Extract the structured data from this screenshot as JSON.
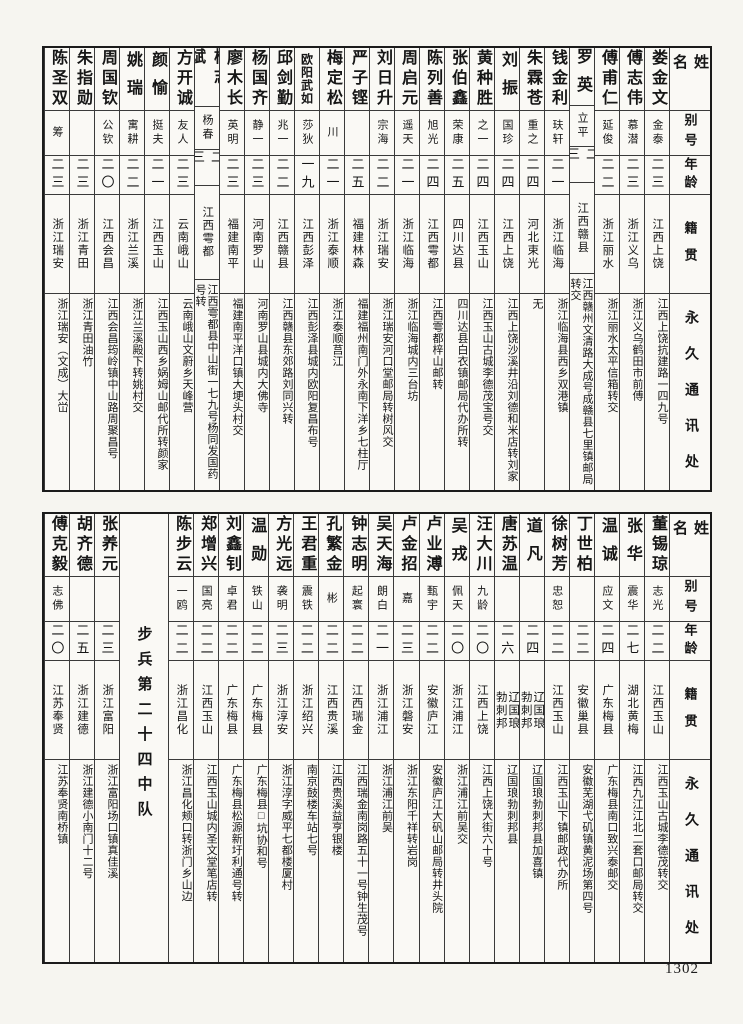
{
  "page": {
    "number": "1302"
  },
  "headers": {
    "name": "姓名",
    "alias": "别号",
    "age": "年龄",
    "native_place": "籍贯",
    "address": "永久通讯处"
  },
  "tables": [
    {
      "entries": [
        {
          "name": "娄金文",
          "alias": "金泰",
          "age": "二三",
          "native_place": "江西上饶",
          "address": "江西上饶抗建路一四九号"
        },
        {
          "name": "傅志伟",
          "alias": "慕潜",
          "age": "二三",
          "native_place": "浙江义乌",
          "address": "浙江义乌鹤田市前傅"
        },
        {
          "name": "傅甫仁",
          "alias": "延俊",
          "age": "二二",
          "native_place": "浙江丽水",
          "address": "浙江丽水太平信箱转交"
        },
        {
          "name": "罗英",
          "alias": "立平",
          "age": "二三",
          "native_place": "江西赣县",
          "address": "江西赣州文清路大成号成赣县七里镇邮局转交\n罗宅均可"
        },
        {
          "name": "钱金利",
          "alias": "玞轩",
          "age": "二一",
          "native_place": "浙江临海",
          "address": "浙江临海县西乡双港镇"
        },
        {
          "name": "朱霖苍",
          "alias": "重之",
          "age": "二四",
          "native_place": "河北束光",
          "address": "无"
        },
        {
          "name": "刘振",
          "alias": "国珍",
          "age": "二四",
          "native_place": "江西上饶",
          "address": "江西上饶沙溪井沿刘德和米店转刘家"
        },
        {
          "name": "黄种胜",
          "alias": "之一",
          "age": "二四",
          "native_place": "江西玉山",
          "address": "江西玉山古城李德茂宝号交"
        },
        {
          "name": "张伯鑫",
          "alias": "荣康",
          "age": "二五",
          "native_place": "四川达县",
          "address": "四川达县白衣镇邮局代办所转"
        },
        {
          "name": "陈列善",
          "alias": "旭光",
          "age": "二四",
          "native_place": "江西雩都",
          "address": "江西雩都梓山邮转"
        },
        {
          "name": "周启元",
          "alias": "遥天",
          "age": "二一",
          "native_place": "浙江临海",
          "address": "浙江临海城内三台坊"
        },
        {
          "name": "刘日升",
          "alias": "宗海",
          "age": "二二",
          "native_place": "浙江瑞安",
          "address": "浙江瑞安河口堂邮局转树风交"
        },
        {
          "name": "严子铿",
          "alias": "",
          "age": "二五",
          "native_place": "福建林森",
          "address": "福建福州南门外永南下洋乡七柱厅"
        },
        {
          "name": "梅定松",
          "alias": "川",
          "age": "二一",
          "native_place": "浙江泰顺",
          "address": "浙江泰顺莒江"
        },
        {
          "name": "欧阳武如",
          "alias": "莎狄",
          "age": "一九",
          "native_place": "江西彭泽",
          "address": "江西彭泽县城内欧阳复昌布号"
        },
        {
          "name": "邱剑勤",
          "alias": "兆一",
          "age": "二二",
          "native_place": "江西赣县",
          "address": "江西赣县东郊路刘同兴转"
        },
        {
          "name": "杨国齐",
          "alias": "静一",
          "age": "二三",
          "native_place": "河南罗山",
          "address": "河南罗山县城内大佛寺"
        },
        {
          "name": "廖木长",
          "alias": "英明",
          "age": "二三",
          "native_place": "福建南平",
          "address": "福建南平洋口镇大埂头村交"
        },
        {
          "name": "杨志斌",
          "alias": "杨春",
          "age": "二三",
          "native_place": "江西雩都",
          "address": "江西雩都县中山街一七九号杨同发国药号转"
        },
        {
          "name": "方开诚",
          "alias": "友人",
          "age": "二三",
          "native_place": "云南峨山",
          "address": "云南峨山文蔚乡天峰营"
        },
        {
          "name": "颜愉",
          "alias": "挺夫",
          "age": "二一",
          "native_place": "江西玉山",
          "address": "江西玉山西乡娲姆山邮代所转颜家"
        },
        {
          "name": "姚瑞",
          "alias": "寓耕",
          "age": "二二",
          "native_place": "浙江兰溪",
          "address": "浙江兰溪殿下转姚村交"
        },
        {
          "name": "周国钦",
          "alias": "公钦",
          "age": "二〇",
          "native_place": "江西会昌",
          "address": "江西会昌筠岭镇中山路周聚昌号"
        },
        {
          "name": "朱指勋",
          "alias": "",
          "age": "二三",
          "native_place": "浙江青田",
          "address": "浙江青田油竹"
        },
        {
          "name": "陈圣双",
          "alias": "筹",
          "age": "二三",
          "native_place": "浙江瑞安",
          "address": "浙江瑞安（文成）大峃"
        }
      ]
    },
    {
      "entries": [
        {
          "name": "董锡琼",
          "alias": "志光",
          "age": "二二",
          "native_place": "江西玉山",
          "address": "江西玉山古城李德茂转交"
        },
        {
          "name": "张华",
          "alias": "震华",
          "age": "二七",
          "native_place": "湖北黄梅",
          "address": "江西九江江北二套口邮局转交"
        },
        {
          "name": "温诚",
          "alias": "应文",
          "age": "二四",
          "native_place": "广东梅县",
          "address": "广东梅县南口致兴泰邮交"
        },
        {
          "name": "丁世柏",
          "alias": "",
          "age": "二二",
          "native_place": "安徽巢县",
          "address": "安徽芜湖弋矶镇黄泥场第四号"
        },
        {
          "name": "徐树芳",
          "alias": "忠恕",
          "age": "二二",
          "native_place": "江西玉山",
          "address": "江西玉山下镇邮政代办所"
        },
        {
          "name": "道凡",
          "alias": "",
          "age": "二四",
          "native_place": "辽国琅\n勃刺邦",
          "address": "辽国琅勃刺邦县加喜镇"
        },
        {
          "name": "唐苏温",
          "alias": "",
          "age": "二六",
          "native_place": "辽国琅\n勃刺邦",
          "address": "辽国琅勃刺邦县"
        },
        {
          "name": "汪大川",
          "alias": "九龄",
          "age": "二〇",
          "native_place": "江西上饶",
          "address": "江西上饶大街六十号"
        },
        {
          "name": "吴戎",
          "alias": "佩天",
          "age": "二〇",
          "native_place": "浙江浦江",
          "address": "浙江浦江前吴交"
        },
        {
          "name": "卢业溥",
          "alias": "甄宇",
          "age": "二二",
          "native_place": "安徽庐江",
          "address": "安徽庐江大矾山邮局转井头院"
        },
        {
          "name": "卢金招",
          "alias": "嘉",
          "age": "二三",
          "native_place": "浙江磐安",
          "address": "浙江东阳千祥转岩岗"
        },
        {
          "name": "吴天海",
          "alias": "朗白",
          "age": "二一",
          "native_place": "浙江浦江",
          "address": "浙江浦江前吴"
        },
        {
          "name": "钟志明",
          "alias": "起寰",
          "age": "二二",
          "native_place": "江西瑞金",
          "address": "江西瑞金南岗路五十一号钟生茂号"
        },
        {
          "name": "孔繁金",
          "alias": "彬",
          "age": "二二",
          "native_place": "江西贵溪",
          "address": "江西贵溪益亨银楼"
        },
        {
          "name": "王君重",
          "alias": "震铁",
          "age": "二二",
          "native_place": "浙江绍兴",
          "address": "南京鼓楼车站七号"
        },
        {
          "name": "方光远",
          "alias": "袭明",
          "age": "二三",
          "native_place": "浙江淳安",
          "address": "浙江淳字威平七都楼厦村"
        },
        {
          "name": "温勋",
          "alias": "铁山",
          "age": "二二",
          "native_place": "广东梅县",
          "address": "广东梅县□坑协和号"
        },
        {
          "name": "刘鑫钊",
          "alias": "卓君",
          "age": "二二",
          "native_place": "广东梅县",
          "address": "广东梅县松源新圩利通号转"
        },
        {
          "name": "郑增兴",
          "alias": "国亮",
          "age": "二二",
          "native_place": "江西玉山",
          "address": "江西玉山城内圣文堂笔店转"
        },
        {
          "name": "陈步云",
          "alias": "一鸥",
          "age": "二二",
          "native_place": "浙江昌化",
          "address": "浙江昌化颊口转浙门乡山边"
        },
        {
          "unit_label": "步兵第二十四中队"
        },
        {
          "name": "张养元",
          "alias": "",
          "age": "二三",
          "native_place": "浙江富阳",
          "address": "浙江富阳场口镇真佳溪"
        },
        {
          "name": "胡齐德",
          "alias": "",
          "age": "二五",
          "native_place": "浙江建德",
          "address": "浙江建德小南门十二号"
        },
        {
          "name": "傅克毅",
          "alias": "志佛",
          "age": "二〇",
          "native_place": "江苏奉贤",
          "address": "江苏奉贤南桥镇"
        }
      ]
    }
  ]
}
